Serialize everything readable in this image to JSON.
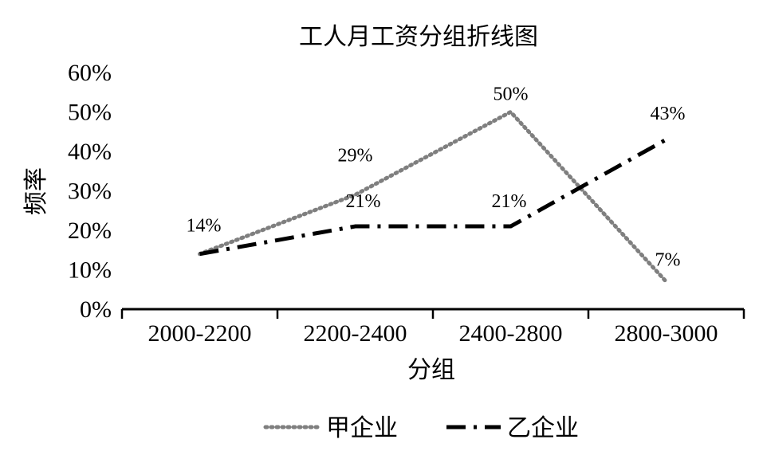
{
  "chart_data": {
    "type": "line",
    "title": "工人月工资分组折线图",
    "xlabel": "分组",
    "ylabel": "频率",
    "categories": [
      "2000-2200",
      "2200-2400",
      "2400-2800",
      "2800-3000"
    ],
    "ylim": [
      0,
      60
    ],
    "yticks": [
      "0%",
      "10%",
      "20%",
      "30%",
      "40%",
      "50%",
      "60%"
    ],
    "grid": false,
    "legend_position": "bottom",
    "series": [
      {
        "name": "甲企业",
        "values": [
          14,
          29,
          50,
          7
        ],
        "labels": [
          "14%",
          "29%",
          "50%",
          "7%"
        ],
        "color": "#7f7f7f",
        "style": "dotted"
      },
      {
        "name": "乙企业",
        "values": [
          14,
          21,
          21,
          43
        ],
        "labels": [
          "",
          "21%",
          "21%",
          "43%"
        ],
        "color": "#000000",
        "style": "dash-dot"
      }
    ]
  }
}
